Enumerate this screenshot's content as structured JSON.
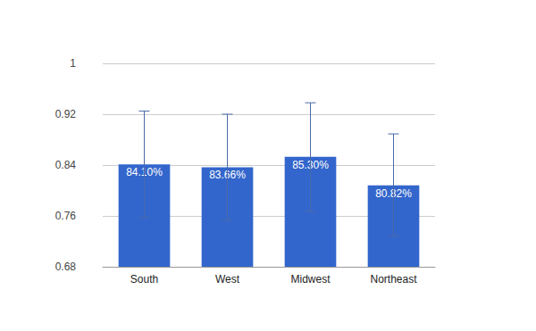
{
  "chart_data": {
    "type": "bar",
    "categories": [
      "South",
      "West",
      "Midwest",
      "Northeast"
    ],
    "values": [
      0.841,
      0.8366,
      0.853,
      0.8082
    ],
    "value_labels": [
      "84.10%",
      "83.66%",
      "85.30%",
      "80.82%"
    ],
    "error_low": [
      0.757,
      0.753,
      0.767,
      0.728
    ],
    "error_high": [
      0.925,
      0.92,
      0.938,
      0.889
    ],
    "color": "#3366cc",
    "ylim": [
      0.68,
      1
    ],
    "yticks": [
      0.68,
      0.76,
      0.84,
      0.92,
      1
    ],
    "grid": true,
    "data_labels": true
  }
}
